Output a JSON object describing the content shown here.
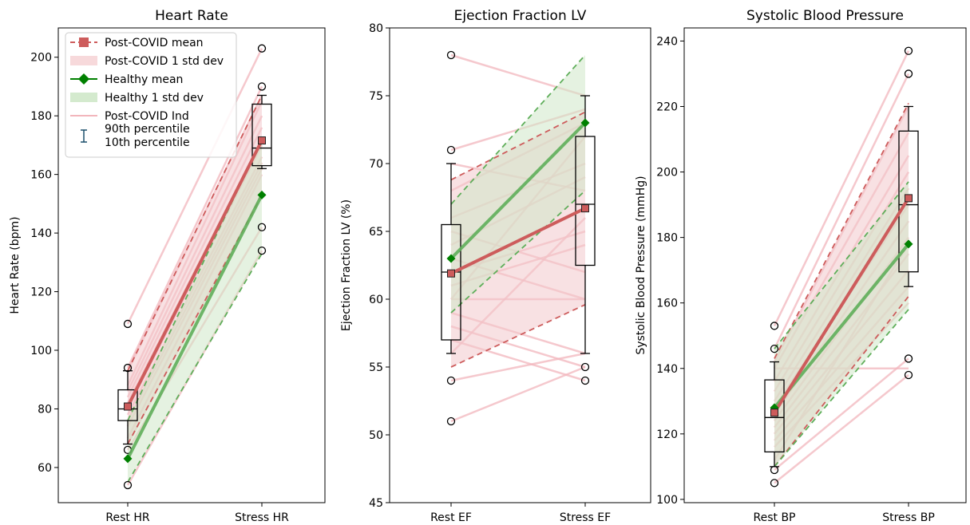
{
  "colors": {
    "covid": "#cd5c5c",
    "covid_band": "#f3c9cc",
    "healthy": "#5fae5a",
    "healthy_band": "#cfe8c9",
    "healthy_marker": "#008000",
    "individual": "#f2b6bc",
    "box": "#000000"
  },
  "legend": {
    "post_covid_mean": "Post-COVID mean",
    "post_covid_std": "Post-COVID 1 std dev",
    "healthy_mean": "Healthy mean",
    "healthy_std": "Healthy 1 std dev",
    "post_covid_ind": "Post-COVID Ind",
    "p90": "90th percentile",
    "p10": "10th percentile"
  },
  "chart_data": [
    {
      "type": "line",
      "title": "Heart Rate",
      "ylabel": "Heart Rate (bpm)",
      "xlabel": "",
      "categories": [
        "Rest HR",
        "Stress HR"
      ],
      "ylim": [
        48,
        210
      ],
      "yticks": [
        60,
        80,
        100,
        120,
        140,
        160,
        180,
        200
      ],
      "legend_position": "top-left",
      "covid": {
        "mean": [
          80.8,
          171.6
        ],
        "std_upper": [
          93,
          187
        ],
        "std_lower": [
          68,
          153
        ],
        "box": [
          {
            "q1": 76,
            "median": 80,
            "q3": 86.5,
            "p10": 68,
            "p90": 93,
            "outliers": [
              54,
              66,
              94,
              109
            ]
          },
          {
            "q1": 163,
            "median": 169,
            "q3": 184,
            "p10": 162,
            "p90": 187,
            "outliers": [
              134,
              142,
              190,
              203
            ]
          }
        ]
      },
      "healthy": {
        "mean": [
          63,
          153
        ],
        "std_upper": [
          76,
          172
        ],
        "std_lower": [
          55,
          133
        ]
      },
      "individuals": [
        [
          109,
          203
        ],
        [
          94,
          190
        ],
        [
          93,
          187
        ],
        [
          88,
          185
        ],
        [
          86,
          180
        ],
        [
          84,
          176
        ],
        [
          82,
          172
        ],
        [
          80,
          170
        ],
        [
          78,
          166
        ],
        [
          76,
          164
        ],
        [
          74,
          162
        ],
        [
          70,
          160
        ],
        [
          68,
          153
        ],
        [
          66,
          142
        ],
        [
          54,
          134
        ]
      ]
    },
    {
      "type": "line",
      "title": "Ejection Fraction LV",
      "ylabel": "Ejection Fraction LV (%)",
      "xlabel": "",
      "categories": [
        "Rest EF",
        "Stress EF"
      ],
      "ylim": [
        45,
        80
      ],
      "yticks": [
        45,
        50,
        55,
        60,
        65,
        70,
        75,
        80
      ],
      "covid": {
        "mean": [
          61.9,
          66.7
        ],
        "std_upper": [
          68.8,
          73.8
        ],
        "std_lower": [
          55,
          59.6
        ],
        "box": [
          {
            "q1": 57,
            "median": 62,
            "q3": 65.5,
            "p10": 56,
            "p90": 70,
            "outliers": [
              51,
              54,
              71,
              78
            ]
          },
          {
            "q1": 62.5,
            "median": 67,
            "q3": 72,
            "p10": 56,
            "p90": 75,
            "outliers": [
              54,
              55
            ]
          }
        ]
      },
      "healthy": {
        "mean": [
          63,
          73
        ],
        "std_upper": [
          67,
          78
        ],
        "std_lower": [
          59,
          68
        ]
      },
      "individuals": [
        [
          78,
          75
        ],
        [
          71,
          74
        ],
        [
          70,
          68
        ],
        [
          68,
          73
        ],
        [
          66,
          70
        ],
        [
          65,
          62
        ],
        [
          64,
          69
        ],
        [
          63,
          60
        ],
        [
          62,
          65
        ],
        [
          61,
          64
        ],
        [
          60,
          72
        ],
        [
          60,
          60
        ],
        [
          59,
          56
        ],
        [
          58,
          55
        ],
        [
          57,
          54
        ],
        [
          56,
          66
        ],
        [
          54,
          56
        ],
        [
          51,
          55
        ]
      ]
    },
    {
      "type": "line",
      "title": "Systolic Blood Pressure",
      "ylabel": "Systolic Blood Pressure (mmHg)",
      "xlabel": "",
      "categories": [
        "Rest BP",
        "Stress BP"
      ],
      "ylim": [
        99,
        244
      ],
      "yticks": [
        100,
        120,
        140,
        160,
        180,
        200,
        220,
        240
      ],
      "covid": {
        "mean": [
          126.5,
          192
        ],
        "std_upper": [
          143,
          221
        ],
        "std_lower": [
          110,
          162
        ],
        "box": [
          {
            "q1": 114.5,
            "median": 125,
            "q3": 136.5,
            "p10": 110,
            "p90": 142,
            "outliers": [
              105,
              109,
              146,
              153
            ]
          },
          {
            "q1": 169.5,
            "median": 190,
            "q3": 212.5,
            "p10": 165,
            "p90": 220,
            "outliers": [
              138,
              143,
              230,
              237
            ]
          }
        ]
      },
      "healthy": {
        "mean": [
          128,
          178
        ],
        "std_upper": [
          146,
          197
        ],
        "std_lower": [
          110,
          158
        ]
      },
      "individuals": [
        [
          153,
          237
        ],
        [
          146,
          230
        ],
        [
          142,
          220
        ],
        [
          140,
          212
        ],
        [
          136,
          205
        ],
        [
          133,
          200
        ],
        [
          130,
          195
        ],
        [
          128,
          190
        ],
        [
          126,
          185
        ],
        [
          124,
          180
        ],
        [
          122,
          175
        ],
        [
          120,
          170
        ],
        [
          118,
          165
        ],
        [
          116,
          160
        ],
        [
          140,
          140
        ],
        [
          112,
          178
        ],
        [
          109,
          143
        ],
        [
          105,
          138
        ]
      ]
    }
  ]
}
